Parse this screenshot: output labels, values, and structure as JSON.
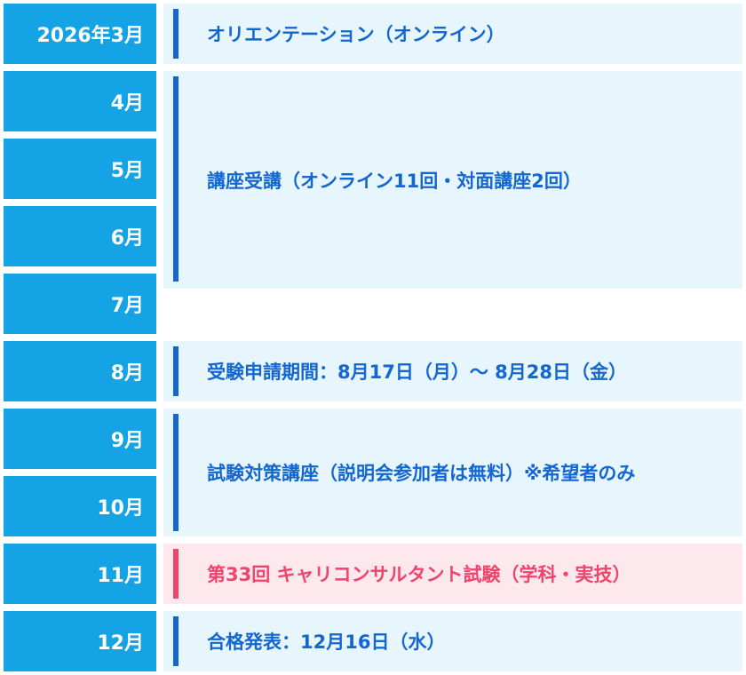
{
  "months": [
    "2026年3月",
    "4月",
    "5月",
    "6月",
    "7月",
    "8月",
    "9月",
    "10月",
    "11月",
    "12月"
  ],
  "events": [
    {
      "text": "オリエンテーション（オンライン）",
      "accent": "#1467d0"
    },
    {
      "text": "講座受講（オンライン11回・対面講座2回）",
      "accent": "#1467d0"
    },
    {
      "text": "受験申請期間：8月17日（月）〜 8月28日（金）",
      "accent": "#1467d0"
    },
    {
      "text": "試験対策講座（説明会参加者は無料）※希望者のみ",
      "accent": "#1467d0"
    },
    {
      "text": "第33回 キャリコンサルタント試験（学科・実技）",
      "accent": "#f0446c"
    },
    {
      "text": "合格発表：12月16日（水）",
      "accent": "#1467d0"
    }
  ],
  "colors": {
    "month_bg": "#14a3e5",
    "event_bg": "#e7f5fc",
    "event_bar": "#1467d0",
    "exam_bg": "#fde8ee",
    "exam_accent": "#f0446c"
  }
}
